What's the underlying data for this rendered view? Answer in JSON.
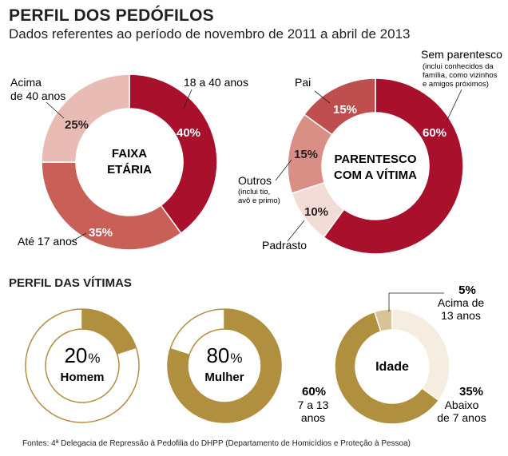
{
  "title": "PERFIL DOS PEDÓFILOS",
  "subtitle": "Dados referentes ao período de novembro de 2011 a abril de 2013",
  "section_title": "PERFIL DAS VÍTIMAS",
  "footer": "Fontes: 4ª Delegacia de Repressão à Pedofilia do DHPP (Departamento de Homicídios e Proteção à Pessoa)",
  "chart_data": [
    {
      "type": "pie",
      "title": "FAIXA ETÁRIA",
      "slices": [
        {
          "label": "18 a 40 anos",
          "value": 40,
          "pct_label": "40%",
          "color": "#a8102c"
        },
        {
          "label": "Até 17 anos",
          "value": 35,
          "pct_label": "35%",
          "color": "#c96058"
        },
        {
          "label": "Acima de 40 anos",
          "value": 25,
          "pct_label": "25%",
          "color": "#e8bcb4"
        }
      ]
    },
    {
      "type": "pie",
      "title": "PARENTESCO COM A VÍTIMA",
      "slices": [
        {
          "label": "Sem parentesco",
          "note": "(inclui conhecidos da família, como vizinhos e amigos próximos)",
          "value": 60,
          "pct_label": "60%",
          "color": "#a8102c"
        },
        {
          "label": "Padrasto",
          "value": 10,
          "pct_label": "10%",
          "color": "#f4dcd6"
        },
        {
          "label": "Outros",
          "note": "(inclui tio, avô e primo)",
          "value": 15,
          "pct_label": "15%",
          "color": "#d98f86"
        },
        {
          "label": "Pai",
          "value": 15,
          "pct_label": "15%",
          "color": "#bf4f4e"
        }
      ]
    },
    {
      "type": "pie",
      "title": "",
      "center_value": "20",
      "center_unit": "%",
      "center_label": "Homem",
      "value": 20,
      "color": "#b08f3f"
    },
    {
      "type": "pie",
      "title": "",
      "center_value": "80",
      "center_unit": "%",
      "center_label": "Mulher",
      "value": 80,
      "color": "#b08f3f"
    },
    {
      "type": "pie",
      "title": "Idade",
      "slices": [
        {
          "label": "Acima de 13 anos",
          "value": 5,
          "pct_label": "5%",
          "color": "#d8c394"
        },
        {
          "label": "Abaixo de 7 anos",
          "value": 35,
          "pct_label": "35%",
          "color": "#f5eee0"
        },
        {
          "label": "7 a 13 anos",
          "value": 60,
          "pct_label": "60%",
          "color": "#b08f3f"
        }
      ]
    }
  ]
}
